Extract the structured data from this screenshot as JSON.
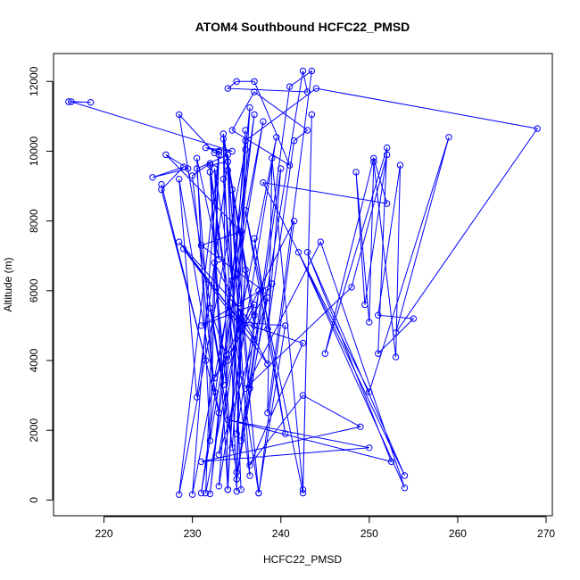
{
  "chart_data": {
    "type": "line",
    "title": "ATOM4 Southbound HCFC22_PMSD",
    "xlabel": "HCFC22_PMSD",
    "ylabel": "Altitude (m)",
    "xlim": [
      214.3,
      270.7
    ],
    "ylim": [
      -450,
      12800
    ],
    "xticks": [
      220,
      230,
      240,
      250,
      260,
      270
    ],
    "yticks": [
      0,
      2000,
      4000,
      6000,
      8000,
      10000,
      12000
    ],
    "grid": false,
    "legend": "none",
    "series": [
      {
        "color": "#0000ff",
        "marker": "open-circle",
        "points": [
          [
            216.0,
            11420
          ],
          [
            218.5,
            11400
          ],
          [
            216.3,
            11420
          ],
          [
            234.5,
            10000
          ],
          [
            231.5,
            10100
          ],
          [
            233.0,
            10000
          ],
          [
            232.5,
            9950
          ],
          [
            228.5,
            11050
          ],
          [
            233.5,
            3300
          ],
          [
            232.0,
            9650
          ],
          [
            230.0,
            9300
          ],
          [
            232.5,
            3100
          ],
          [
            230.5,
            9500
          ],
          [
            234.0,
            9900
          ],
          [
            236.5,
            700
          ],
          [
            232.0,
            9600
          ],
          [
            234.0,
            9700
          ],
          [
            235.5,
            300
          ],
          [
            234.0,
            9450
          ],
          [
            237.5,
            200
          ],
          [
            232.0,
            9400
          ],
          [
            234.0,
            300
          ],
          [
            233.5,
            10350
          ],
          [
            237.0,
            5300
          ],
          [
            233.5,
            10500
          ],
          [
            235.0,
            250
          ],
          [
            236.0,
            10600
          ],
          [
            233.0,
            400
          ],
          [
            239.5,
            10400
          ],
          [
            231.5,
            200
          ],
          [
            233.0,
            10000
          ],
          [
            230.0,
            160
          ],
          [
            238.0,
            10850
          ],
          [
            231.0,
            200
          ],
          [
            237.0,
            11050
          ],
          [
            232.0,
            180
          ],
          [
            236.5,
            11250
          ],
          [
            234.0,
            300
          ],
          [
            236.0,
            10050
          ],
          [
            228.5,
            160
          ],
          [
            233.0,
            9900
          ],
          [
            232.0,
            1700
          ],
          [
            230.5,
            9800
          ],
          [
            233.0,
            6900
          ],
          [
            232.5,
            9500
          ],
          [
            234.5,
            6300
          ],
          [
            233.5,
            9200
          ],
          [
            235.5,
            3600
          ],
          [
            234.5,
            8900
          ],
          [
            236.5,
            3200
          ],
          [
            240.0,
            9500
          ],
          [
            238.5,
            4900
          ],
          [
            241.5,
            10300
          ],
          [
            243.0,
            10600
          ],
          [
            237.0,
            11700
          ],
          [
            234.5,
            10600
          ],
          [
            241.0,
            9600
          ],
          [
            237.0,
            12000
          ],
          [
            235.0,
            12000
          ],
          [
            234.0,
            11800
          ],
          [
            243.0,
            11700
          ],
          [
            242.5,
            12300
          ],
          [
            235.0,
            600
          ],
          [
            241.0,
            11850
          ],
          [
            243.5,
            12300
          ],
          [
            238.5,
            2500
          ],
          [
            239.0,
            9800
          ],
          [
            242.5,
            300
          ],
          [
            243.5,
            11050
          ],
          [
            242.5,
            200
          ],
          [
            236.0,
            8300
          ],
          [
            240.5,
            1900
          ],
          [
            237.0,
            7500
          ],
          [
            238.0,
            6000
          ],
          [
            231.0,
            7300
          ],
          [
            235.5,
            7700
          ],
          [
            227.0,
            9900
          ],
          [
            229.5,
            9500
          ],
          [
            225.5,
            9250
          ],
          [
            229.0,
            9550
          ],
          [
            226.5,
            8900
          ],
          [
            231.5,
            4000
          ],
          [
            226.5,
            9050
          ],
          [
            233.0,
            2500
          ],
          [
            228.5,
            9200
          ],
          [
            230.5,
            2950
          ],
          [
            234.0,
            9700
          ],
          [
            237.0,
            5000
          ],
          [
            228.5,
            7400
          ],
          [
            237.0,
            4600
          ],
          [
            229.0,
            7200
          ],
          [
            238.5,
            3900
          ],
          [
            232.5,
            6800
          ],
          [
            234.5,
            1500
          ],
          [
            236.0,
            6600
          ],
          [
            235.0,
            1900
          ],
          [
            237.5,
            6000
          ],
          [
            235.5,
            1700
          ],
          [
            238.5,
            5800
          ],
          [
            233.0,
            1300
          ],
          [
            235.5,
            5500
          ],
          [
            235.0,
            800
          ],
          [
            232.0,
            5500
          ],
          [
            234.0,
            4000
          ],
          [
            237.0,
            5600
          ],
          [
            231.0,
            5000
          ],
          [
            239.0,
            6200
          ],
          [
            232.5,
            3500
          ],
          [
            241.5,
            8000
          ],
          [
            237.5,
            200
          ],
          [
            240.5,
            5000
          ],
          [
            235.5,
            5100
          ],
          [
            242.5,
            4500
          ],
          [
            236.5,
            1000
          ],
          [
            242.5,
            3000
          ],
          [
            249.0,
            2100
          ],
          [
            231.0,
            1100
          ],
          [
            250.0,
            1500
          ],
          [
            234.0,
            2300
          ],
          [
            252.5,
            1100
          ],
          [
            243.0,
            7100
          ],
          [
            254.0,
            700
          ],
          [
            242.0,
            7100
          ],
          [
            254.0,
            350
          ],
          [
            244.5,
            7400
          ],
          [
            236.0,
            3200
          ],
          [
            248.0,
            6100
          ],
          [
            252.0,
            9900
          ],
          [
            249.5,
            5600
          ],
          [
            248.5,
            9400
          ],
          [
            250.0,
            5100
          ],
          [
            250.5,
            9700
          ],
          [
            253.0,
            4100
          ],
          [
            253.5,
            9600
          ],
          [
            251.0,
            5300
          ],
          [
            255.0,
            5200
          ],
          [
            251.0,
            4200
          ],
          [
            252.0,
            10100
          ],
          [
            245.0,
            4200
          ],
          [
            250.5,
            9800
          ],
          [
            252.0,
            8500
          ],
          [
            238.0,
            9100
          ],
          [
            250.0,
            3100
          ],
          [
            259.0,
            10400
          ],
          [
            253.0,
            4800
          ],
          [
            269.0,
            10650
          ],
          [
            244.0,
            11800
          ],
          [
            236.0,
            10300
          ]
        ]
      }
    ]
  }
}
